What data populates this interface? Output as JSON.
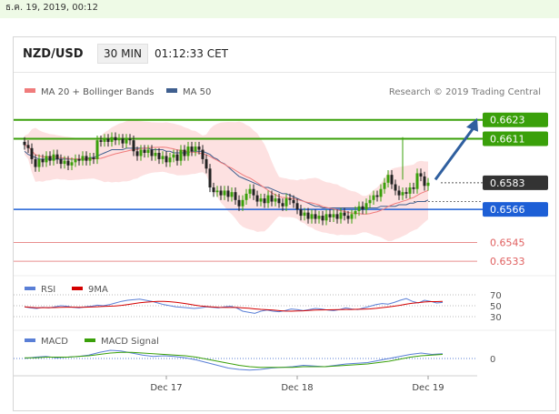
{
  "header_bar": {
    "date_text": "ธ.ค. 19, 2019, 00:12"
  },
  "instrument": {
    "pair": "NZD/USD",
    "timeframe": "30 MIN",
    "time": "01:12:33 CET"
  },
  "legend": {
    "ma20_label": "MA 20 + Bollinger Bands",
    "ma50_label": "MA 50",
    "credit": "Research © 2019 Trading Central"
  },
  "colors": {
    "ma20": "#f07c7c",
    "ma50": "#3f5f8f",
    "band_fill": "#fde1e1",
    "resistance": "#3aa00a",
    "support_blue": "#1d5fd6",
    "support_red": "#e06060",
    "current_price_tag": "#333333",
    "arrow": "#2f5f9f",
    "rsi": "#5a7fd6",
    "rsi_ma": "#d40000",
    "macd": "#5a7fd6",
    "macd_signal": "#3aa00a"
  },
  "chart_data": {
    "type": "candlestick",
    "x_axis": {
      "tick_labels": [
        "Dec 17",
        "Dec 18",
        "Dec 19"
      ],
      "tick_bar_index": [
        39,
        75,
        111
      ]
    },
    "y_axis": {
      "range": [
        0.6525,
        0.6635
      ]
    },
    "levels": [
      {
        "name": "resistance",
        "value": 0.6623,
        "label": "0.6623",
        "style": "green"
      },
      {
        "name": "resistance",
        "value": 0.6611,
        "label": "0.6611",
        "style": "green"
      },
      {
        "name": "current",
        "value": 0.6583,
        "label": "0.6583",
        "style": "dark"
      },
      {
        "name": "support",
        "value": 0.6566,
        "label": "0.6566",
        "style": "blue"
      },
      {
        "name": "support",
        "value": 0.6545,
        "label": "0.6545",
        "style": "red"
      },
      {
        "name": "support",
        "value": 0.6533,
        "label": "0.6533",
        "style": "red"
      }
    ],
    "forecast_arrow": {
      "from_bar": 113,
      "from_value": 0.6585,
      "to_bar": 124,
      "to_value": 0.6623
    },
    "candles_close": [
      0.6607,
      0.6605,
      0.6598,
      0.6593,
      0.6598,
      0.6596,
      0.66,
      0.6597,
      0.6601,
      0.6598,
      0.6595,
      0.6597,
      0.6594,
      0.6596,
      0.6598,
      0.6597,
      0.66,
      0.6597,
      0.6599,
      0.6598,
      0.661,
      0.6609,
      0.6611,
      0.6609,
      0.6612,
      0.661,
      0.6611,
      0.6608,
      0.6611,
      0.661,
      0.6603,
      0.66,
      0.6604,
      0.6602,
      0.6604,
      0.66,
      0.6602,
      0.6598,
      0.66,
      0.6596,
      0.6599,
      0.6601,
      0.6597,
      0.6604,
      0.66,
      0.6606,
      0.6603,
      0.6606,
      0.6604,
      0.6598,
      0.6592,
      0.658,
      0.6577,
      0.6578,
      0.6575,
      0.6578,
      0.6574,
      0.6577,
      0.6572,
      0.6568,
      0.6572,
      0.6576,
      0.6579,
      0.6575,
      0.6571,
      0.6573,
      0.657,
      0.6575,
      0.6571,
      0.6573,
      0.657,
      0.6568,
      0.6573,
      0.6572,
      0.657,
      0.6566,
      0.6562,
      0.6564,
      0.656,
      0.6563,
      0.656,
      0.6562,
      0.6559,
      0.6563,
      0.6561,
      0.6563,
      0.656,
      0.6564,
      0.6562,
      0.656,
      0.6563,
      0.6565,
      0.6568,
      0.6566,
      0.657,
      0.6572,
      0.6575,
      0.6574,
      0.6579,
      0.6583,
      0.6588,
      0.6582,
      0.6578,
      0.6575,
      0.6577,
      0.6576,
      0.658,
      0.6579,
      0.6589,
      0.6587,
      0.6581,
      0.6583
    ],
    "ma50_values": [
      0.6603,
      0.6601,
      0.66,
      0.6599,
      0.6598,
      0.6598,
      0.6598,
      0.6598,
      0.6598,
      0.6598,
      0.6598,
      0.6598,
      0.6598,
      0.6598,
      0.6598,
      0.6598,
      0.6598,
      0.6598,
      0.6599,
      0.6599,
      0.66,
      0.6601,
      0.6602,
      0.6603,
      0.6604,
      0.6604,
      0.6604,
      0.6604,
      0.6605,
      0.6605,
      0.6605,
      0.6605,
      0.6605,
      0.6605,
      0.6605,
      0.6604,
      0.6604,
      0.6604,
      0.6604,
      0.6603,
      0.6603,
      0.6602,
      0.6602,
      0.6602,
      0.6602,
      0.6602,
      0.6603,
      0.6603,
      0.6603,
      0.6603,
      0.6602,
      0.6601,
      0.6599,
      0.6598,
      0.6596,
      0.6595,
      0.6593,
      0.6591,
      0.6589,
      0.6587,
      0.6586,
      0.6585,
      0.6584,
      0.6583,
      0.6582,
      0.6581,
      0.658,
      0.658,
      0.6579,
      0.6578,
      0.6577,
      0.6576,
      0.6576,
      0.6575,
      0.6574,
      0.6573,
      0.6572,
      0.6571,
      0.657,
      0.6569,
      0.6568,
      0.6568,
      0.6567,
      0.6567,
      0.6567,
      0.6567,
      0.6567,
      0.6567,
      0.6567,
      0.6567,
      0.6567,
      0.6567,
      0.6567,
      0.6567,
      0.6567,
      0.6567,
      0.6567,
      0.6567,
      0.6568,
      0.6568,
      0.6568,
      0.6568,
      0.6568,
      0.6569,
      0.6569,
      0.6569,
      0.657,
      0.657,
      0.6571,
      0.6571,
      0.6571,
      0.6572
    ],
    "rsi": {
      "levels": [
        70,
        50,
        30
      ],
      "level_labels": [
        "70",
        "50",
        "30"
      ],
      "label": "RSI",
      "ma_label": "9MA",
      "values": [
        48,
        46,
        45,
        47,
        46,
        48,
        50,
        49,
        47,
        46,
        48,
        49,
        51,
        50,
        52,
        55,
        58,
        60,
        61,
        62,
        60,
        58,
        55,
        52,
        50,
        48,
        47,
        46,
        45,
        46,
        48,
        47,
        46,
        48,
        49,
        46,
        40,
        38,
        36,
        40,
        42,
        40,
        39,
        41,
        44,
        43,
        41,
        43,
        45,
        44,
        42,
        41,
        43,
        46,
        44,
        43,
        46,
        49,
        52,
        54,
        53,
        56,
        60,
        63,
        58,
        55,
        60,
        58,
        55,
        56
      ]
    },
    "macd": {
      "label": "MACD",
      "signal_label": "MACD Signal",
      "zero_label": "0",
      "macd_values": [
        0.0,
        0.0002,
        0.0003,
        0.0001,
        0.0002,
        0.0003,
        0.0005,
        0.0009,
        0.0012,
        0.0011,
        0.0008,
        0.0005,
        0.0003,
        0.0004,
        0.0003,
        0.0001,
        -0.0002,
        -0.0006,
        -0.001,
        -0.0014,
        -0.0016,
        -0.0017,
        -0.0016,
        -0.0014,
        -0.0013,
        -0.0012,
        -0.001,
        -0.0011,
        -0.0012,
        -0.001,
        -0.0008,
        -0.0007,
        -0.0006,
        -0.0003,
        0.0,
        0.0003,
        0.0006,
        0.0008,
        0.0006,
        0.0007
      ],
      "signal_values": [
        0.0001,
        0.0001,
        0.0002,
        0.0002,
        0.0002,
        0.0003,
        0.0004,
        0.0006,
        0.0008,
        0.0009,
        0.0009,
        0.0008,
        0.0007,
        0.0006,
        0.0005,
        0.0004,
        0.0002,
        -0.0001,
        -0.0004,
        -0.0007,
        -0.001,
        -0.0012,
        -0.0013,
        -0.0013,
        -0.0013,
        -0.0013,
        -0.0012,
        -0.0012,
        -0.0012,
        -0.0011,
        -0.001,
        -0.0009,
        -0.0008,
        -0.0006,
        -0.0004,
        -0.0001,
        0.0002,
        0.0004,
        0.0005,
        0.0006
      ]
    }
  }
}
